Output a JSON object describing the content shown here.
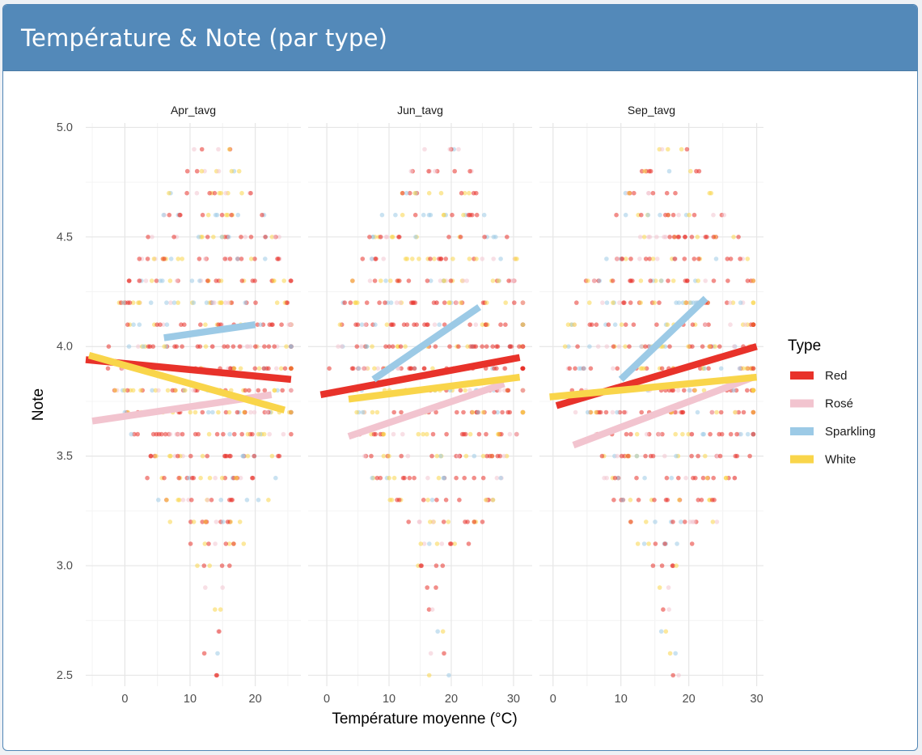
{
  "card": {
    "title": "Température & Note (par type)"
  },
  "chart_data": {
    "type": "scatter",
    "xlabel": "Température moyenne (°C)",
    "ylabel": "Note",
    "ylim": [
      2.45,
      5.02
    ],
    "yticks": [
      2.5,
      3.0,
      3.5,
      4.0,
      4.5,
      5.0
    ],
    "ytick_labels": [
      "2.5",
      "3.0",
      "3.5",
      "4.0",
      "4.5",
      "5.0"
    ],
    "grid": true,
    "legend": {
      "title": "Type",
      "position": "right"
    },
    "series": [
      {
        "name": "Red",
        "color": "#e8322a"
      },
      {
        "name": "Rosé",
        "color": "#f2c4cf"
      },
      {
        "name": "Sparkling",
        "color": "#9ccae6"
      },
      {
        "name": "White",
        "color": "#f9d54a"
      }
    ],
    "facets": [
      {
        "strip": "Apr_tavg",
        "xlim": [
          -6,
          27
        ],
        "xticks": [
          0,
          10,
          20
        ],
        "xtick_labels": [
          "0",
          "10",
          "20"
        ],
        "trend_lines": [
          {
            "series": "Red",
            "x": [
              -6,
              25.5
            ],
            "y": [
              3.94,
              3.85
            ]
          },
          {
            "series": "Rosé",
            "x": [
              -5,
              22.5
            ],
            "y": [
              3.66,
              3.78
            ]
          },
          {
            "series": "Sparkling",
            "x": [
              6,
              20
            ],
            "y": [
              4.04,
              4.1
            ]
          },
          {
            "series": "White",
            "x": [
              -5.5,
              24.5
            ],
            "y": [
              3.96,
              3.71
            ]
          }
        ]
      },
      {
        "strip": "Jun_tavg",
        "xlim": [
          -3,
          33
        ],
        "xticks": [
          0,
          10,
          20,
          30
        ],
        "xtick_labels": [
          "0",
          "10",
          "20",
          "30"
        ],
        "trend_lines": [
          {
            "series": "Red",
            "x": [
              -1,
              31
            ],
            "y": [
              3.78,
              3.95
            ]
          },
          {
            "series": "Rosé",
            "x": [
              3.5,
              28.5
            ],
            "y": [
              3.59,
              3.83
            ]
          },
          {
            "series": "Sparkling",
            "x": [
              7.5,
              24.5
            ],
            "y": [
              3.85,
              4.18
            ]
          },
          {
            "series": "White",
            "x": [
              3.5,
              31
            ],
            "y": [
              3.76,
              3.86
            ]
          }
        ]
      },
      {
        "strip": "Sep_tavg",
        "xlim": [
          -2,
          31
        ],
        "xticks": [
          0,
          10,
          20,
          30
        ],
        "xtick_labels": [
          "0",
          "10",
          "20",
          "30"
        ],
        "trend_lines": [
          {
            "series": "Red",
            "x": [
              0.5,
              30
            ],
            "y": [
              3.73,
              4.0
            ]
          },
          {
            "series": "Rosé",
            "x": [
              3,
              29.5
            ],
            "y": [
              3.55,
              3.86
            ]
          },
          {
            "series": "Sparkling",
            "x": [
              10,
              22.5
            ],
            "y": [
              3.85,
              4.22
            ]
          },
          {
            "series": "White",
            "x": [
              -0.5,
              30
            ],
            "y": [
              3.77,
              3.86
            ]
          }
        ]
      }
    ]
  }
}
